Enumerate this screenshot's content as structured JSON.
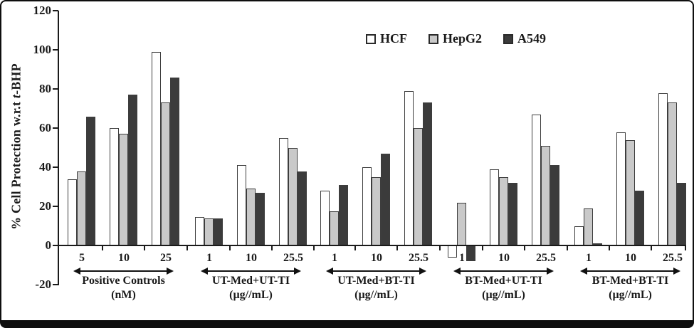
{
  "chart_data": {
    "type": "bar",
    "title": "",
    "ylabel": "% Cell Protection w.r.t t-BHP",
    "ylabel_parts": {
      "prefix": "% Cell Protection w.r.t ",
      "italic": "t",
      "suffix": "-BHP"
    },
    "ylim": [
      -20,
      120
    ],
    "yticks": [
      120,
      100,
      80,
      60,
      40,
      20,
      0,
      -20
    ],
    "grid": false,
    "legend_position": "top-center-inside",
    "groups": [
      {
        "label": "Positive Controls",
        "unit": "(nM)",
        "concentrations": [
          "5",
          "10",
          "25"
        ]
      },
      {
        "label": "UT-Med+UT-TI",
        "unit": "(µg//mL)",
        "concentrations": [
          "1",
          "10",
          "25.5"
        ]
      },
      {
        "label": "UT-Med+BT-TI",
        "unit": "(µg//mL)",
        "concentrations": [
          "1",
          "10",
          "25.5"
        ]
      },
      {
        "label": "BT-Med+UT-TI",
        "unit": "(µg//mL)",
        "concentrations": [
          "1",
          "10",
          "25.5"
        ]
      },
      {
        "label": "BT-Med+BT-TI",
        "unit": "(µg//mL)",
        "concentrations": [
          "1",
          "10",
          "25.5"
        ]
      }
    ],
    "series": [
      {
        "name": "HCF",
        "color": "#ffffff",
        "values": [
          [
            34,
            60,
            99
          ],
          [
            14.5,
            41,
            55
          ],
          [
            28,
            40,
            79
          ],
          [
            -6,
            39,
            67
          ],
          [
            10,
            58,
            78
          ]
        ]
      },
      {
        "name": "HepG2",
        "color": "#c9c9c9",
        "values": [
          [
            38,
            57,
            73
          ],
          [
            14,
            29,
            50
          ],
          [
            17.5,
            35,
            60
          ],
          [
            22,
            35,
            51
          ],
          [
            19,
            54,
            73
          ]
        ]
      },
      {
        "name": "A549",
        "color": "#3b3b3b",
        "values": [
          [
            66,
            77,
            86
          ],
          [
            14,
            27,
            38
          ],
          [
            31,
            47,
            73
          ],
          [
            -8,
            32,
            41
          ],
          [
            1,
            28,
            32
          ]
        ]
      }
    ]
  }
}
